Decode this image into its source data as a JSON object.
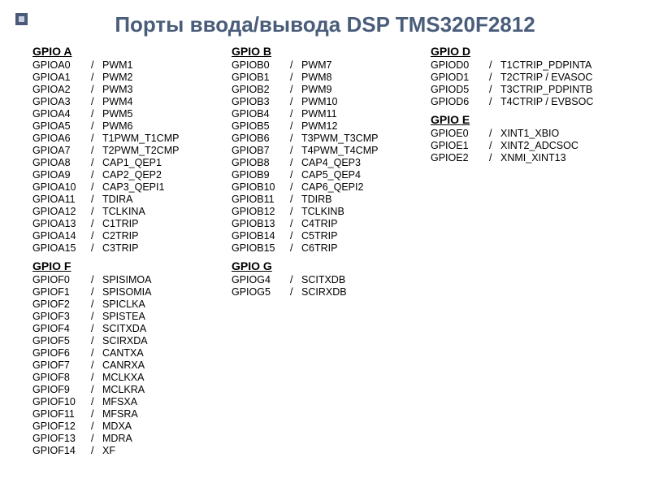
{
  "title": "Порты ввода/вывода DSP TMS320F2812",
  "text_color": "#000000",
  "title_color": "#4a5d7a",
  "background": "#ffffff",
  "columns": [
    [
      {
        "head": "GPIO A",
        "rows": [
          {
            "pin": "GPIOA0",
            "alt": "PWM1"
          },
          {
            "pin": "GPIOA1",
            "alt": "PWM2"
          },
          {
            "pin": "GPIOA2",
            "alt": "PWM3"
          },
          {
            "pin": "GPIOA3",
            "alt": "PWM4"
          },
          {
            "pin": "GPIOA4",
            "alt": "PWM5"
          },
          {
            "pin": "GPIOA5",
            "alt": "PWM6"
          },
          {
            "pin": "GPIOA6",
            "alt": "T1PWM_T1CMP"
          },
          {
            "pin": "GPIOA7",
            "alt": "T2PWM_T2CMP"
          },
          {
            "pin": "GPIOA8",
            "alt": "CAP1_QEP1"
          },
          {
            "pin": "GPIOA9",
            "alt": "CAP2_QEP2"
          },
          {
            "pin": "GPIOA10",
            "alt": "CAP3_QEPI1"
          },
          {
            "pin": "GPIOA11",
            "alt": "TDIRA"
          },
          {
            "pin": "GPIOA12",
            "alt": "TCLKINA"
          },
          {
            "pin": "GPIOA13",
            "alt": "C1TRIP"
          },
          {
            "pin": "GPIOA14",
            "alt": "C2TRIP"
          },
          {
            "pin": "GPIOA15",
            "alt": "C3TRIP"
          }
        ]
      },
      {
        "head": "GPIO F",
        "rows": [
          {
            "pin": "GPIOF0",
            "alt": "SPISIMOA"
          },
          {
            "pin": "GPIOF1",
            "alt": "SPISOMIA"
          },
          {
            "pin": "GPIOF2",
            "alt": "SPICLKA"
          },
          {
            "pin": "GPIOF3",
            "alt": "SPISTEA"
          },
          {
            "pin": "GPIOF4",
            "alt": "SCITXDA"
          },
          {
            "pin": "GPIOF5",
            "alt": "SCIRXDA"
          },
          {
            "pin": "GPIOF6",
            "alt": "CANTXA"
          },
          {
            "pin": "GPIOF7",
            "alt": "CANRXA"
          },
          {
            "pin": "GPIOF8",
            "alt": "MCLKXA"
          },
          {
            "pin": "GPIOF9",
            "alt": "MCLKRA"
          },
          {
            "pin": "GPIOF10",
            "alt": "MFSXA"
          },
          {
            "pin": "GPIOF11",
            "alt": "MFSRA"
          },
          {
            "pin": "GPIOF12",
            "alt": "MDXA"
          },
          {
            "pin": "GPIOF13",
            "alt": "MDRA"
          },
          {
            "pin": "GPIOF14",
            "alt": "XF"
          }
        ]
      }
    ],
    [
      {
        "head": "GPIO B",
        "rows": [
          {
            "pin": "GPIOB0",
            "alt": "PWM7"
          },
          {
            "pin": "GPIOB1",
            "alt": "PWM8"
          },
          {
            "pin": "GPIOB2",
            "alt": "PWM9"
          },
          {
            "pin": "GPIOB3",
            "alt": "PWM10"
          },
          {
            "pin": "GPIOB4",
            "alt": "PWM11"
          },
          {
            "pin": "GPIOB5",
            "alt": "PWM12"
          },
          {
            "pin": "GPIOB6",
            "alt": "T3PWM_T3CMP"
          },
          {
            "pin": "GPIOB7",
            "alt": "T4PWM_T4CMP"
          },
          {
            "pin": "GPIOB8",
            "alt": "CAP4_QEP3"
          },
          {
            "pin": "GPIOB9",
            "alt": "CAP5_QEP4"
          },
          {
            "pin": "GPIOB10",
            "alt": "CAP6_QEPI2"
          },
          {
            "pin": "GPIOB11",
            "alt": "TDIRB"
          },
          {
            "pin": "GPIOB12",
            "alt": "TCLKINB"
          },
          {
            "pin": "GPIOB13",
            "alt": "C4TRIP"
          },
          {
            "pin": "GPIOB14",
            "alt": "C5TRIP"
          },
          {
            "pin": "GPIOB15",
            "alt": "C6TRIP"
          }
        ]
      },
      {
        "head": "GPIO G",
        "rows": [
          {
            "pin": "GPIOG4",
            "alt": "SCITXDB"
          },
          {
            "pin": "GPIOG5",
            "alt": "SCIRXDB"
          }
        ]
      }
    ],
    [
      {
        "head": "GPIO D",
        "rows": [
          {
            "pin": "GPIOD0",
            "alt": "T1CTRIP_PDPINTA"
          },
          {
            "pin": "GPIOD1",
            "alt": "T2CTRIP / EVASOC"
          },
          {
            "pin": "GPIOD5",
            "alt": "T3CTRIP_PDPINTB"
          },
          {
            "pin": "GPIOD6",
            "alt": "T4CTRIP / EVBSOC"
          }
        ]
      },
      {
        "head": "GPIO E",
        "rows": [
          {
            "pin": "GPIOE0",
            "alt": "XINT1_XBIO"
          },
          {
            "pin": "GPIOE1",
            "alt": "XINT2_ADCSOC"
          },
          {
            "pin": "GPIOE2",
            "alt": "XNMI_XINT13"
          }
        ]
      }
    ]
  ]
}
